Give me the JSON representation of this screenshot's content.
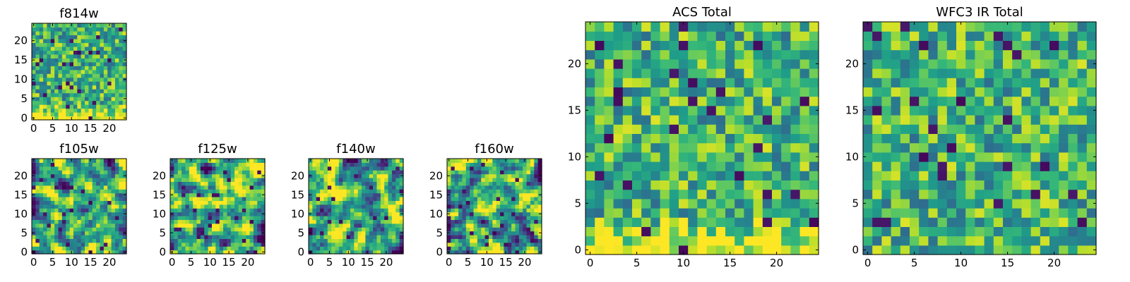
{
  "chart_data": [
    {
      "type": "heatmap",
      "title": "f814w",
      "xlim": [
        -0.5,
        24.5
      ],
      "ylim": [
        -0.5,
        24.5
      ],
      "xticks": [
        0,
        5,
        10,
        15,
        20
      ],
      "yticks": [
        0,
        5,
        10,
        15,
        20
      ],
      "colormap": "viridis",
      "seed": 11,
      "style": "fine",
      "brighten_bottom": true
    },
    {
      "type": "heatmap",
      "title": "f105w",
      "xlim": [
        -0.5,
        24.5
      ],
      "ylim": [
        -0.5,
        24.5
      ],
      "xticks": [
        0,
        5,
        10,
        15,
        20
      ],
      "yticks": [
        0,
        5,
        10,
        15,
        20
      ],
      "colormap": "viridis",
      "seed": 23,
      "style": "smooth",
      "brighten_bottom": false
    },
    {
      "type": "heatmap",
      "title": "f125w",
      "xlim": [
        -0.5,
        24.5
      ],
      "ylim": [
        -0.5,
        24.5
      ],
      "xticks": [
        0,
        5,
        10,
        15,
        20
      ],
      "yticks": [
        0,
        5,
        10,
        15,
        20
      ],
      "colormap": "viridis",
      "seed": 37,
      "style": "smooth",
      "brighten_bottom": false
    },
    {
      "type": "heatmap",
      "title": "f140w",
      "xlim": [
        -0.5,
        24.5
      ],
      "ylim": [
        -0.5,
        24.5
      ],
      "xticks": [
        0,
        5,
        10,
        15,
        20
      ],
      "yticks": [
        0,
        5,
        10,
        15,
        20
      ],
      "colormap": "viridis",
      "seed": 41,
      "style": "smooth",
      "brighten_bottom": false
    },
    {
      "type": "heatmap",
      "title": "f160w",
      "xlim": [
        -0.5,
        24.5
      ],
      "ylim": [
        -0.5,
        24.5
      ],
      "xticks": [
        0,
        5,
        10,
        15,
        20
      ],
      "yticks": [
        0,
        5,
        10,
        15,
        20
      ],
      "colormap": "viridis",
      "seed": 53,
      "style": "smooth",
      "brighten_bottom": false
    },
    {
      "type": "heatmap",
      "title": "ACS Total",
      "xlim": [
        -0.5,
        24.5
      ],
      "ylim": [
        -0.5,
        24.5
      ],
      "xticks": [
        0,
        5,
        10,
        15,
        20
      ],
      "yticks": [
        0,
        5,
        10,
        15,
        20
      ],
      "colormap": "viridis",
      "seed": 67,
      "style": "blocky",
      "brighten_bottom": true
    },
    {
      "type": "heatmap",
      "title": "WFC3 IR Total",
      "xlim": [
        -0.5,
        24.5
      ],
      "ylim": [
        -0.5,
        24.5
      ],
      "xticks": [
        0,
        5,
        10,
        15,
        20
      ],
      "yticks": [
        0,
        5,
        10,
        15,
        20
      ],
      "colormap": "viridis",
      "seed": 79,
      "style": "blocky",
      "brighten_bottom": false
    }
  ]
}
